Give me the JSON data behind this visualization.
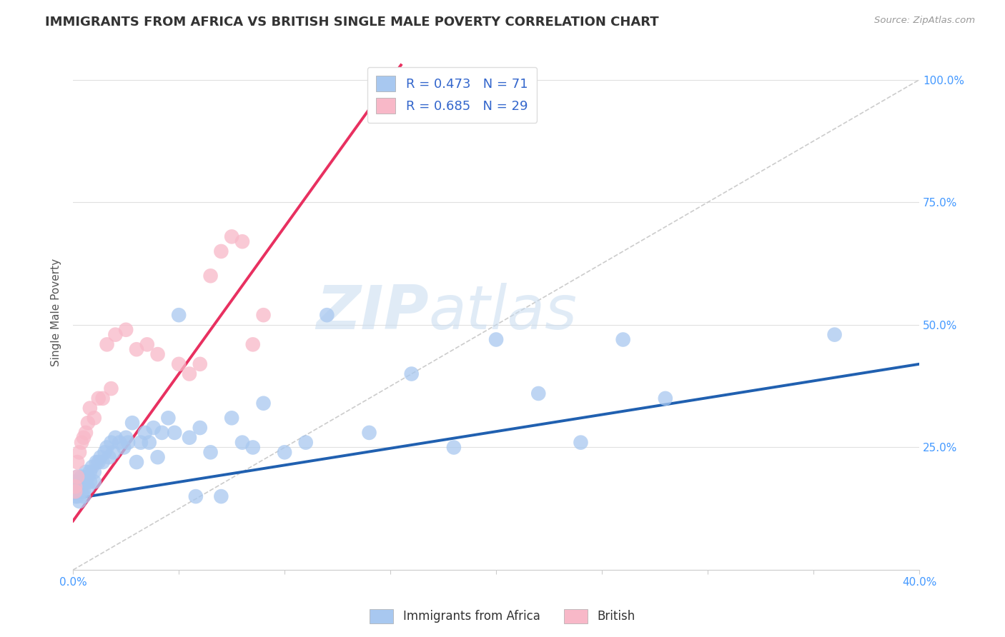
{
  "title": "IMMIGRANTS FROM AFRICA VS BRITISH SINGLE MALE POVERTY CORRELATION CHART",
  "source": "Source: ZipAtlas.com",
  "ylabel_label": "Single Male Poverty",
  "x_min": 0.0,
  "x_max": 0.4,
  "y_min": 0.0,
  "y_max": 1.05,
  "x_ticks": [
    0.0,
    0.05,
    0.1,
    0.15,
    0.2,
    0.25,
    0.3,
    0.35,
    0.4
  ],
  "y_ticks": [
    0.0,
    0.25,
    0.5,
    0.75,
    1.0
  ],
  "y_tick_labels": [
    "",
    "25.0%",
    "50.0%",
    "75.0%",
    "100.0%"
  ],
  "blue_color": "#A8C8F0",
  "blue_line_color": "#2060B0",
  "pink_color": "#F8B8C8",
  "pink_line_color": "#E83060",
  "legend_r_blue": "R = 0.473",
  "legend_n_blue": "N = 71",
  "legend_r_pink": "R = 0.685",
  "legend_n_pink": "N = 29",
  "legend_label_blue": "Immigrants from Africa",
  "legend_label_pink": "British",
  "watermark_zip": "ZIP",
  "watermark_atlas": "atlas",
  "blue_scatter_x": [
    0.001,
    0.001,
    0.001,
    0.002,
    0.002,
    0.002,
    0.002,
    0.003,
    0.003,
    0.003,
    0.004,
    0.004,
    0.004,
    0.005,
    0.005,
    0.005,
    0.006,
    0.006,
    0.007,
    0.007,
    0.008,
    0.008,
    0.009,
    0.01,
    0.01,
    0.011,
    0.012,
    0.013,
    0.014,
    0.015,
    0.016,
    0.017,
    0.018,
    0.019,
    0.02,
    0.022,
    0.024,
    0.025,
    0.026,
    0.028,
    0.03,
    0.032,
    0.034,
    0.036,
    0.038,
    0.04,
    0.042,
    0.045,
    0.048,
    0.05,
    0.055,
    0.058,
    0.06,
    0.065,
    0.07,
    0.075,
    0.08,
    0.085,
    0.09,
    0.1,
    0.11,
    0.12,
    0.14,
    0.16,
    0.18,
    0.2,
    0.22,
    0.24,
    0.26,
    0.28,
    0.36
  ],
  "blue_scatter_y": [
    0.18,
    0.17,
    0.15,
    0.19,
    0.17,
    0.16,
    0.15,
    0.18,
    0.17,
    0.14,
    0.19,
    0.17,
    0.16,
    0.18,
    0.16,
    0.15,
    0.2,
    0.18,
    0.19,
    0.17,
    0.2,
    0.18,
    0.21,
    0.2,
    0.18,
    0.22,
    0.22,
    0.23,
    0.22,
    0.24,
    0.25,
    0.23,
    0.26,
    0.24,
    0.27,
    0.26,
    0.25,
    0.27,
    0.26,
    0.3,
    0.22,
    0.26,
    0.28,
    0.26,
    0.29,
    0.23,
    0.28,
    0.31,
    0.28,
    0.52,
    0.27,
    0.15,
    0.29,
    0.24,
    0.15,
    0.31,
    0.26,
    0.25,
    0.34,
    0.24,
    0.26,
    0.52,
    0.28,
    0.4,
    0.25,
    0.47,
    0.36,
    0.26,
    0.47,
    0.35,
    0.48
  ],
  "pink_scatter_x": [
    0.001,
    0.001,
    0.002,
    0.002,
    0.003,
    0.004,
    0.005,
    0.006,
    0.007,
    0.008,
    0.01,
    0.012,
    0.014,
    0.016,
    0.018,
    0.02,
    0.025,
    0.03,
    0.035,
    0.04,
    0.05,
    0.055,
    0.06,
    0.065,
    0.07,
    0.075,
    0.08,
    0.085,
    0.09
  ],
  "pink_scatter_y": [
    0.17,
    0.16,
    0.19,
    0.22,
    0.24,
    0.26,
    0.27,
    0.28,
    0.3,
    0.33,
    0.31,
    0.35,
    0.35,
    0.46,
    0.37,
    0.48,
    0.49,
    0.45,
    0.46,
    0.44,
    0.42,
    0.4,
    0.42,
    0.6,
    0.65,
    0.68,
    0.67,
    0.46,
    0.52
  ],
  "blue_line_x": [
    0.0,
    0.4
  ],
  "blue_line_y": [
    0.145,
    0.42
  ],
  "pink_line_x": [
    0.0,
    0.155
  ],
  "pink_line_y": [
    0.1,
    1.03
  ],
  "diag_line_x": [
    0.0,
    0.4
  ],
  "diag_line_y": [
    0.0,
    1.0
  ],
  "background_color": "#FFFFFF",
  "grid_color": "#E0E0E0",
  "title_fontsize": 13,
  "axis_label_fontsize": 11,
  "tick_fontsize": 11,
  "legend_fontsize": 12
}
